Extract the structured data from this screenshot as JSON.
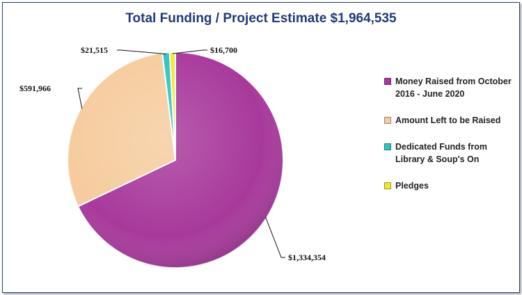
{
  "chart_data": {
    "type": "pie",
    "title": "Total Funding / Project Estimate $1,964,535",
    "legend_position": "right",
    "slices": [
      {
        "name": "Money Raised from October 2016 - June 2020",
        "value": 1334354,
        "label": "$1,334,354",
        "color": "#a8399c"
      },
      {
        "name": "Amount Left to be Raised",
        "value": 591966,
        "label": "$591,966",
        "color": "#f6cc9e"
      },
      {
        "name": "Dedicated Funds from Library & Soup's On",
        "value": 21515,
        "label": "$21,515",
        "color": "#2ec4c2"
      },
      {
        "name": "Pledges",
        "value": 16700,
        "label": "$16,700",
        "color": "#f0ea2a"
      }
    ]
  }
}
